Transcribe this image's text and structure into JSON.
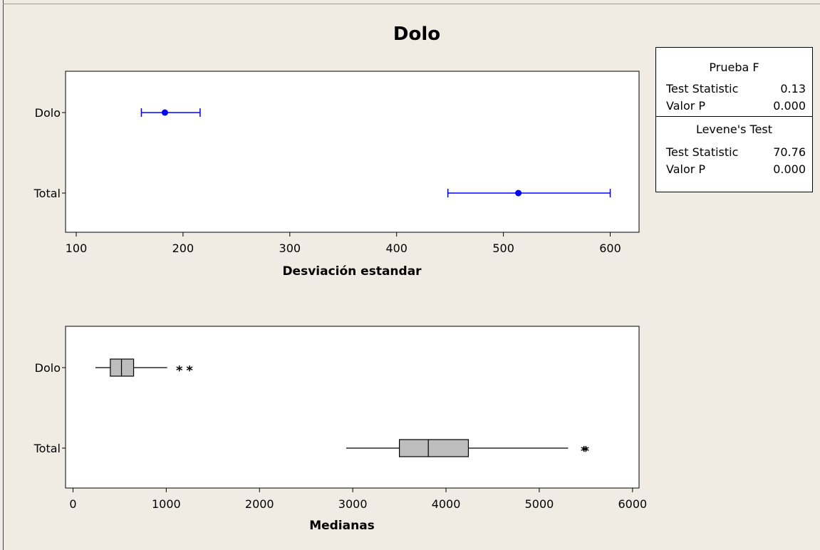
{
  "title": "Dolo",
  "stats_box": {
    "test1_title": "Prueba F",
    "test1_rows": [
      {
        "label": "Test Statistic",
        "value": "0.13"
      },
      {
        "label": "Valor P",
        "value": "0.000"
      }
    ],
    "test2_title": "Levene's Test",
    "test2_rows": [
      {
        "label": "Test Statistic",
        "value": "70.76"
      },
      {
        "label": "Valor P",
        "value": "0.000"
      }
    ]
  },
  "chart_data": [
    {
      "type": "interval",
      "xlabel": "Desviación estandar",
      "xlim": [
        90,
        627
      ],
      "xticks": [
        100,
        200,
        300,
        400,
        500,
        600
      ],
      "categories": [
        "Dolo",
        "Total"
      ],
      "intervals": [
        {
          "category": "Dolo",
          "low": 161,
          "estimate": 183,
          "high": 216
        },
        {
          "category": "Total",
          "low": 448,
          "estimate": 514,
          "high": 600
        }
      ],
      "color": "#0000ff"
    },
    {
      "type": "boxplot",
      "xlabel": "Medianas",
      "xlim": [
        -80,
        6070
      ],
      "xticks": [
        0,
        1000,
        2000,
        3000,
        4000,
        5000,
        6000
      ],
      "categories": [
        "Dolo",
        "Total"
      ],
      "boxes": [
        {
          "category": "Dolo",
          "whisker_low": 240,
          "q1": 400,
          "median": 520,
          "q3": 650,
          "whisker_high": 1010,
          "outliers": [
            1140,
            1250
          ]
        },
        {
          "category": "Total",
          "whisker_low": 2930,
          "q1": 3500,
          "median": 3810,
          "q3": 4240,
          "whisker_high": 5310,
          "outliers": [
            5480,
            5500
          ]
        }
      ],
      "box_fill": "#bdbdbd"
    }
  ]
}
